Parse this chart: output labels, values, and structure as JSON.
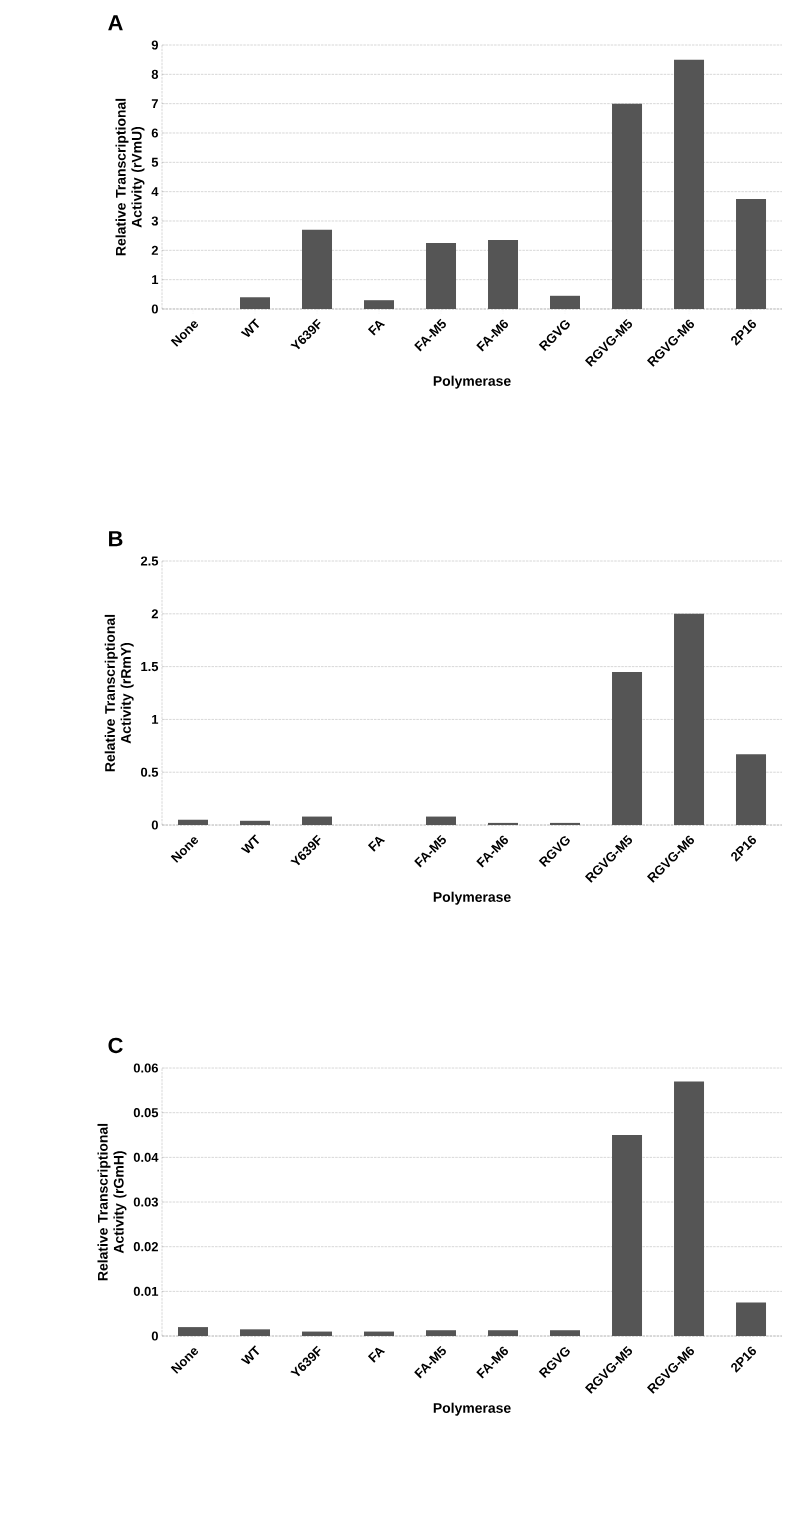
{
  "chart_data": [
    {
      "type": "bar",
      "title": "A",
      "xlabel": "Polymerase",
      "ylabel": "Relative Transcriptional Activity (rVmU)",
      "categories": [
        "None",
        "WT",
        "Y639F",
        "FA",
        "FA-M5",
        "FA-M6",
        "RGVG",
        "RGVG-M5",
        "RGVG-M6",
        "2P16"
      ],
      "values": [
        0,
        0.4,
        2.7,
        0.3,
        2.25,
        2.35,
        0.45,
        7.0,
        8.5,
        3.75
      ],
      "color": "#555555",
      "ylim": [
        0,
        9
      ],
      "yticks": [
        0,
        1,
        2,
        3,
        4,
        5,
        6,
        7,
        8,
        9
      ],
      "grid": "y"
    },
    {
      "type": "bar",
      "title": "B",
      "xlabel": "Polymerase",
      "ylabel": "Relative Transcriptional Activity (rRmY)",
      "categories": [
        "None",
        "WT",
        "Y639F",
        "FA",
        "FA-M5",
        "FA-M6",
        "RGVG",
        "RGVG-M5",
        "RGVG-M6",
        "2P16"
      ],
      "values": [
        0.05,
        0.04,
        0.08,
        0,
        0.08,
        0.02,
        0.02,
        1.45,
        2.0,
        0.67
      ],
      "color": "#555555",
      "ylim": [
        0,
        2.5
      ],
      "yticks": [
        0,
        0.5,
        1,
        1.5,
        2,
        2.5
      ],
      "grid": "y"
    },
    {
      "type": "bar",
      "title": "C",
      "xlabel": "Polymerase",
      "ylabel": "Relative Transcriptional Activity (rGmH)",
      "categories": [
        "None",
        "WT",
        "Y639F",
        "FA",
        "FA-M5",
        "FA-M6",
        "RGVG",
        "RGVG-M5",
        "RGVG-M6",
        "2P16"
      ],
      "values": [
        0.002,
        0.0015,
        0.001,
        0.001,
        0.0013,
        0.0013,
        0.0013,
        0.045,
        0.057,
        0.0075
      ],
      "color": "#555555",
      "ylim": [
        0,
        0.06
      ],
      "yticks": [
        0,
        0.01,
        0.02,
        0.03,
        0.04,
        0.05,
        0.06
      ],
      "grid": "y"
    }
  ]
}
